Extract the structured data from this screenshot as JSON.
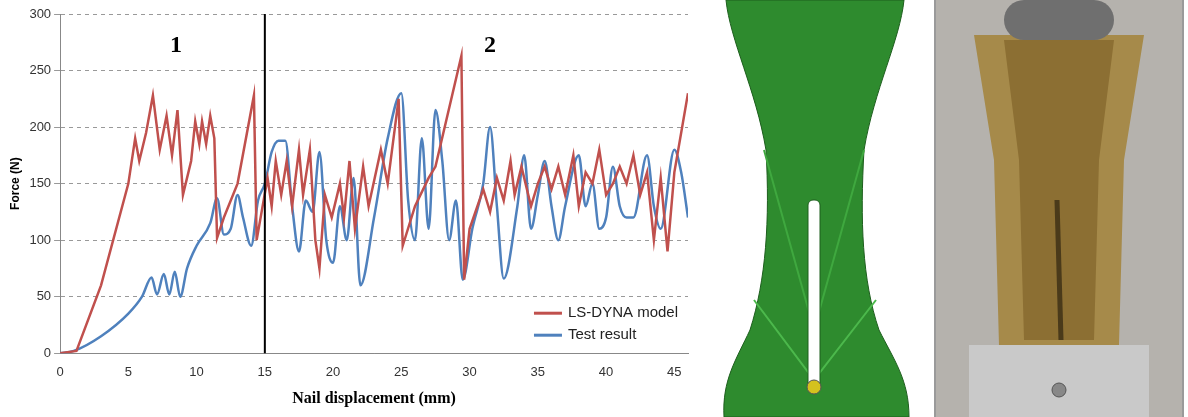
{
  "chart_data": {
    "type": "line",
    "x_label": "Nail displacement (mm)",
    "y_label": "Force (N)",
    "xlim": [
      0,
      46
    ],
    "xticks": [
      0,
      5,
      10,
      15,
      20,
      25,
      30,
      35,
      40,
      45
    ],
    "ylim": [
      0,
      300
    ],
    "yticks": [
      0,
      50,
      100,
      150,
      200,
      250,
      300
    ],
    "grid": true,
    "legend": "lower right",
    "annotations": [
      {
        "text": "1",
        "x": 8.5,
        "y": 272
      },
      {
        "text": "2",
        "x": 31.5,
        "y": 272
      },
      {
        "type": "vline",
        "x": 15
      }
    ],
    "series": [
      {
        "name": "LS-DYNA model",
        "color": "#c0504d",
        "line_style": "straight",
        "marker": "none",
        "x": [
          0,
          1.2,
          3,
          5,
          5.5,
          5.8,
          6.3,
          6.8,
          7.3,
          7.8,
          8.2,
          8.6,
          9,
          9.6,
          9.9,
          10.2,
          10.4,
          10.7,
          11,
          11.3,
          11.5,
          12,
          13,
          14.2,
          14.4,
          15.2,
          15.5,
          15.8,
          16.2,
          16.6,
          17,
          17.5,
          17.8,
          18.3,
          18.7,
          19,
          19.4,
          19.9,
          20.5,
          20.8,
          21.2,
          21.6,
          22.2,
          22.6,
          23.5,
          24,
          24.8,
          25.1,
          26,
          27,
          27.5,
          29.4,
          29.6,
          30,
          31,
          31.5,
          32,
          32.5,
          33,
          33.3,
          33.8,
          34.5,
          35,
          35.5,
          36,
          36.5,
          37,
          37.6,
          38,
          38.5,
          39,
          39.5,
          40,
          40.5,
          41,
          41.5,
          42,
          42.5,
          43,
          43.5,
          44,
          44.5,
          45,
          46
        ],
        "values": [
          0,
          2,
          60,
          150,
          190,
          170,
          195,
          228,
          180,
          210,
          175,
          215,
          140,
          170,
          205,
          185,
          205,
          185,
          210,
          190,
          102,
          120,
          150,
          228,
          100,
          155,
          130,
          170,
          140,
          170,
          130,
          180,
          140,
          180,
          100,
          75,
          140,
          120,
          150,
          120,
          170,
          110,
          165,
          130,
          180,
          150,
          225,
          95,
          130,
          155,
          165,
          263,
          65,
          110,
          145,
          125,
          155,
          135,
          170,
          140,
          165,
          130,
          150,
          165,
          145,
          165,
          140,
          175,
          130,
          160,
          150,
          180,
          140,
          150,
          165,
          150,
          175,
          140,
          160,
          100,
          155,
          90,
          160,
          230
        ]
      },
      {
        "name": "Test result",
        "color": "#4f81bd",
        "line_style": "smooth",
        "marker": "none",
        "x": [
          0,
          1,
          3,
          5,
          6,
          6.7,
          7.1,
          7.6,
          8,
          8.4,
          8.8,
          9.3,
          10,
          11,
          11.5,
          12,
          12.5,
          13,
          13.4,
          14,
          14.5,
          15,
          15.5,
          16,
          16.5,
          17,
          17.5,
          18,
          18.5,
          19,
          19.5,
          20,
          20.5,
          21,
          21.5,
          22,
          23,
          24,
          25,
          25.5,
          26,
          26.5,
          27,
          27.5,
          28,
          28.5,
          29,
          29.5,
          30.2,
          31,
          31.5,
          32,
          32.5,
          33.5,
          34,
          34.5,
          35,
          35.5,
          36,
          36.5,
          37,
          38,
          38.5,
          39,
          39.5,
          40,
          40.5,
          41,
          41.5,
          42,
          43,
          43.5,
          44,
          45,
          45.5,
          46
        ],
        "values": [
          0,
          2,
          15,
          35,
          50,
          67,
          52,
          70,
          52,
          72,
          50,
          75,
          95,
          115,
          137,
          105,
          110,
          140,
          120,
          95,
          135,
          150,
          178,
          188,
          188,
          130,
          90,
          135,
          125,
          178,
          100,
          80,
          130,
          100,
          155,
          60,
          120,
          190,
          230,
          135,
          100,
          190,
          110,
          215,
          170,
          100,
          135,
          65,
          110,
          150,
          200,
          130,
          66,
          130,
          175,
          110,
          140,
          170,
          130,
          100,
          130,
          175,
          130,
          150,
          110,
          120,
          165,
          130,
          120,
          120,
          175,
          130,
          110,
          180,
          160,
          120
        ]
      }
    ]
  }
}
